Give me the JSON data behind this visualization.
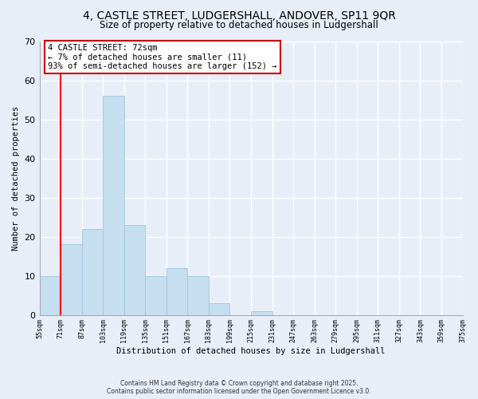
{
  "title": "4, CASTLE STREET, LUDGERSHALL, ANDOVER, SP11 9QR",
  "subtitle": "Size of property relative to detached houses in Ludgershall",
  "xlabel": "Distribution of detached houses by size in Ludgershall",
  "ylabel": "Number of detached properties",
  "bin_labels": [
    "55sqm",
    "71sqm",
    "87sqm",
    "103sqm",
    "119sqm",
    "135sqm",
    "151sqm",
    "167sqm",
    "183sqm",
    "199sqm",
    "215sqm",
    "231sqm",
    "247sqm",
    "263sqm",
    "279sqm",
    "295sqm",
    "311sqm",
    "327sqm",
    "343sqm",
    "359sqm",
    "375sqm"
  ],
  "bar_values": [
    10,
    18,
    22,
    56,
    23,
    10,
    12,
    10,
    3,
    0,
    1,
    0,
    0,
    0,
    0,
    0,
    0,
    0,
    0,
    0
  ],
  "bar_color": "#c5dff0",
  "bar_edge_color": "#a0c4dc",
  "vline_color": "red",
  "ylim": [
    0,
    70
  ],
  "yticks": [
    0,
    10,
    20,
    30,
    40,
    50,
    60,
    70
  ],
  "annotation_title": "4 CASTLE STREET: 72sqm",
  "annotation_line1": "← 7% of detached houses are smaller (11)",
  "annotation_line2": "93% of semi-detached houses are larger (152) →",
  "annotation_box_color": "#ffffff",
  "annotation_box_edge": "#cc0000",
  "footer_line1": "Contains HM Land Registry data © Crown copyright and database right 2025.",
  "footer_line2": "Contains public sector information licensed under the Open Government Licence v3.0.",
  "background_color": "#e8eef8",
  "grid_color": "#ffffff"
}
